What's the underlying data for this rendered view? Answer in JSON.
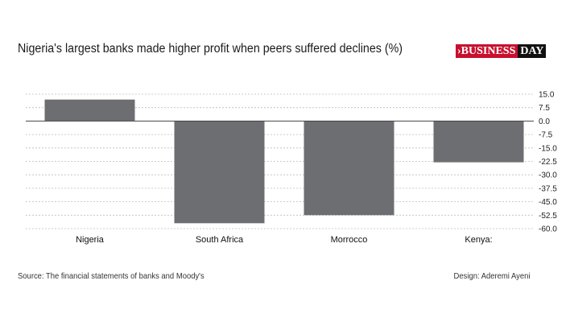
{
  "header": {
    "title": "Nigeria's largest banks made higher profit when peers suffered declines (%)",
    "logo_arrow": "›",
    "logo_business": "BUSINESS",
    "logo_day": "DAY"
  },
  "footer": {
    "source": "Source: The financial statements of banks and Moody's",
    "design": "Design: Aderemi Ayeni"
  },
  "colors": {
    "bar": "#6d6e71",
    "grid": "#bdbdbd",
    "zero_line": "#444444",
    "logo_red": "#c8102e"
  },
  "chart_data": {
    "type": "bar",
    "title": "Nigeria's largest banks made higher profit when peers suffered declines (%)",
    "categories": [
      "Nigeria",
      "South Africa",
      "Morrocco",
      "Kenya:"
    ],
    "values": [
      12,
      -57,
      -52.5,
      -23
    ],
    "ylim": [
      -60,
      15
    ],
    "yticks": [
      15.0,
      7.5,
      0.0,
      -7.5,
      -15.0,
      -22.5,
      -30.0,
      -37.5,
      -45.0,
      -52.5,
      -60.0
    ],
    "ytick_labels": [
      "15.0",
      "7.5",
      "0.0",
      "-7.5",
      "-15.0",
      "-22.5",
      "-30.0",
      "-37.5",
      "-45.0",
      "-52.5",
      "-60.0"
    ],
    "xlabel": "",
    "ylabel": "",
    "grid": true,
    "yaxis_side": "right"
  }
}
